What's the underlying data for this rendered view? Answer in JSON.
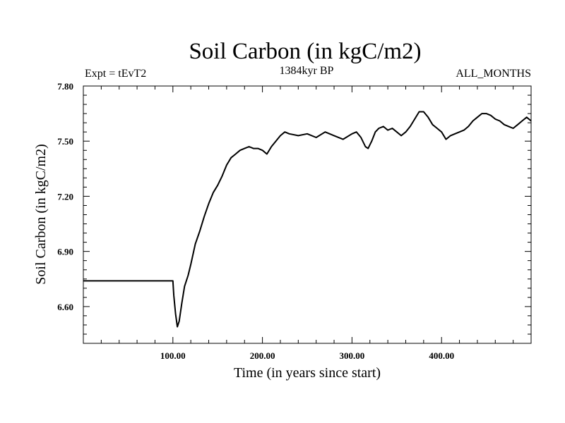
{
  "chart_data": {
    "type": "line",
    "title": "Soil Carbon (in kgC/m2)",
    "subtitle_left": "Expt = tEvT2",
    "subtitle_center": "1384kyr BP",
    "subtitle_right": "ALL_MONTHS",
    "xlabel": "Time (in years since start)",
    "ylabel": "Soil Carbon (in kgC/m2)",
    "xlim": [
      0,
      500
    ],
    "ylim": [
      6.4,
      7.8
    ],
    "x_ticks": [
      100,
      200,
      300,
      400
    ],
    "x_tick_labels": [
      "100.00",
      "200.00",
      "300.00",
      "400.00"
    ],
    "y_ticks": [
      6.6,
      6.9,
      7.2,
      7.5,
      7.8
    ],
    "y_tick_labels": [
      "6.60",
      "6.90",
      "7.20",
      "7.50",
      "7.80"
    ],
    "grid": false,
    "series": [
      {
        "name": "Soil Carbon",
        "color": "#000000",
        "x": [
          0,
          100,
          101,
          103,
          105,
          107,
          110,
          113,
          117,
          120,
          125,
          130,
          135,
          140,
          145,
          150,
          155,
          160,
          165,
          170,
          175,
          180,
          185,
          190,
          195,
          200,
          205,
          210,
          215,
          220,
          225,
          230,
          240,
          250,
          260,
          270,
          280,
          290,
          300,
          305,
          310,
          315,
          318,
          322,
          326,
          330,
          335,
          340,
          345,
          350,
          355,
          360,
          365,
          370,
          375,
          380,
          385,
          390,
          395,
          400,
          405,
          410,
          415,
          420,
          425,
          430,
          435,
          440,
          445,
          450,
          455,
          460,
          465,
          470,
          475,
          480,
          485,
          490,
          495,
          500
        ],
        "y": [
          6.74,
          6.74,
          6.66,
          6.56,
          6.49,
          6.52,
          6.62,
          6.71,
          6.77,
          6.83,
          6.94,
          7.01,
          7.09,
          7.16,
          7.22,
          7.26,
          7.31,
          7.37,
          7.41,
          7.43,
          7.45,
          7.46,
          7.47,
          7.46,
          7.46,
          7.45,
          7.43,
          7.47,
          7.5,
          7.53,
          7.55,
          7.54,
          7.53,
          7.54,
          7.52,
          7.55,
          7.53,
          7.51,
          7.54,
          7.55,
          7.52,
          7.47,
          7.46,
          7.5,
          7.55,
          7.57,
          7.58,
          7.56,
          7.57,
          7.55,
          7.53,
          7.55,
          7.58,
          7.62,
          7.66,
          7.66,
          7.63,
          7.59,
          7.57,
          7.55,
          7.51,
          7.53,
          7.54,
          7.55,
          7.56,
          7.58,
          7.61,
          7.63,
          7.65,
          7.65,
          7.64,
          7.62,
          7.61,
          7.59,
          7.58,
          7.57,
          7.59,
          7.61,
          7.63,
          7.61
        ]
      }
    ]
  }
}
